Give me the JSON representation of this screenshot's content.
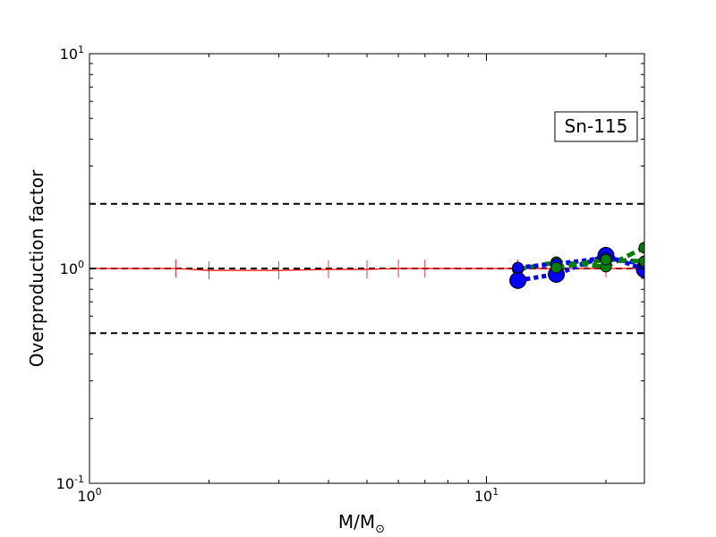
{
  "chart_data": {
    "type": "line",
    "title": "",
    "annotation": "Sn-115",
    "xlabel": "M/M",
    "xlabel_subscript": "⊙",
    "ylabel": "Overproduction factor",
    "xscale": "log",
    "yscale": "log",
    "xlim": [
      1,
      25
    ],
    "ylim": [
      0.1,
      10
    ],
    "xticks": [
      {
        "value": 1,
        "base": "10",
        "exp": "0"
      },
      {
        "value": 10,
        "base": "10",
        "exp": "1"
      }
    ],
    "yticks": [
      {
        "value": 0.1,
        "base": "10",
        "exp": "-1"
      },
      {
        "value": 1,
        "base": "10",
        "exp": "0"
      },
      {
        "value": 10,
        "base": "10",
        "exp": "1"
      }
    ],
    "reference_lines": [
      {
        "y": 2.0,
        "style": "dashed",
        "color": "#000000"
      },
      {
        "y": 1.0,
        "style": "dashed",
        "color": "#000000"
      },
      {
        "y": 0.5,
        "style": "dashed",
        "color": "#000000"
      }
    ],
    "series": [
      {
        "color": "#ff0000",
        "style": "solid",
        "marker": "tick",
        "x": [
          1.0,
          1.65,
          2.0,
          3.0,
          4.0,
          5.0,
          6.0,
          7.0,
          12.0,
          15.0,
          20.0,
          25.0
        ],
        "y": [
          1.0,
          1.0,
          0.98,
          0.98,
          0.99,
          0.99,
          1.0,
          1.0,
          1.0,
          1.0,
          1.0,
          1.0
        ]
      },
      {
        "color": "#008000",
        "style": "dashed",
        "marker": "circle",
        "x": [
          12.0,
          15.0,
          20.0,
          25.0
        ],
        "y": [
          0.99,
          1.07,
          1.02,
          1.25
        ]
      },
      {
        "color": "#0000ff",
        "style": "dotted",
        "marker": "circle",
        "x": [
          12.0,
          15.0,
          20.0,
          25.0
        ],
        "y": [
          0.88,
          0.94,
          1.15,
          0.99
        ]
      },
      {
        "color": "#0000ff",
        "style": "dotted",
        "marker": "circle",
        "x": [
          12.0,
          15.0,
          20.0,
          25.0
        ],
        "y": [
          1.01,
          1.05,
          1.12,
          1.05
        ]
      },
      {
        "color": "#008000",
        "style": "dashed",
        "marker": "circle",
        "x": [
          15.0,
          20.0,
          25.0
        ],
        "y": [
          1.01,
          1.1,
          1.08
        ]
      }
    ]
  }
}
